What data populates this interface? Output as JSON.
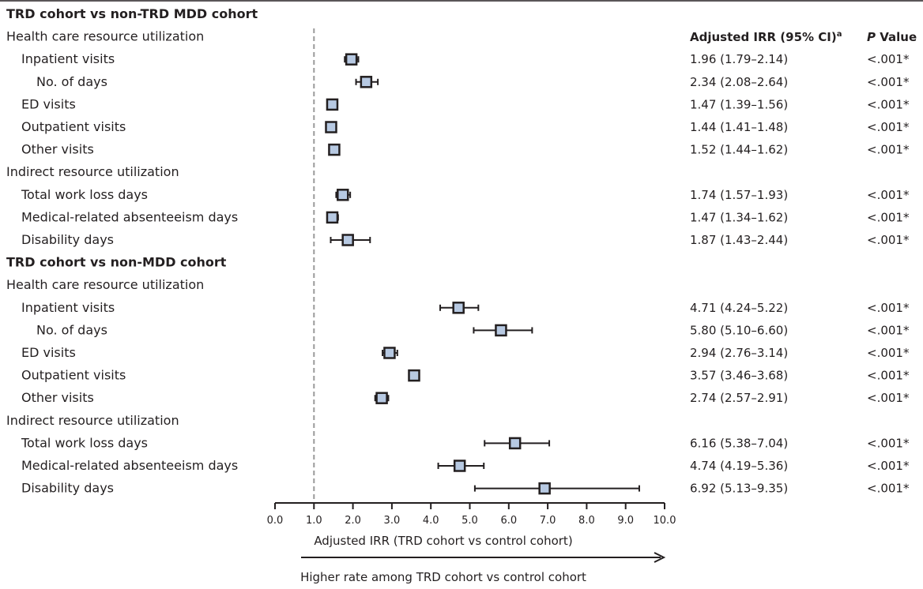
{
  "header": {
    "irr_label": "Adjusted IRR (95% CI)",
    "irr_superscript": "a",
    "p_label_italic": "P",
    "p_label_rest": " Value"
  },
  "sections": [
    {
      "label": "TRD cohort vs non-TRD MDD cohort",
      "groups": [
        {
          "label": "Health care resource utilization",
          "rows": [
            {
              "label": "Inpatient visits",
              "indent": 1,
              "irr": 1.96,
              "lo": 1.79,
              "hi": 2.14,
              "ci_text": "1.96 (1.79–2.14)",
              "p": "<.001*"
            },
            {
              "label": "No. of days",
              "indent": 2,
              "irr": 2.34,
              "lo": 2.08,
              "hi": 2.64,
              "ci_text": "2.34 (2.08–2.64)",
              "p": "<.001*"
            },
            {
              "label": "ED visits",
              "indent": 1,
              "irr": 1.47,
              "lo": 1.39,
              "hi": 1.56,
              "ci_text": "1.47 (1.39–1.56)",
              "p": "<.001*"
            },
            {
              "label": "Outpatient visits",
              "indent": 1,
              "irr": 1.44,
              "lo": 1.41,
              "hi": 1.48,
              "ci_text": "1.44 (1.41–1.48)",
              "p": "<.001*"
            },
            {
              "label": "Other visits",
              "indent": 1,
              "irr": 1.52,
              "lo": 1.44,
              "hi": 1.62,
              "ci_text": "1.52 (1.44–1.62)",
              "p": "<.001*"
            }
          ]
        },
        {
          "label": "Indirect resource utilization",
          "rows": [
            {
              "label": "Total work loss days",
              "indent": 1,
              "irr": 1.74,
              "lo": 1.57,
              "hi": 1.93,
              "ci_text": "1.74 (1.57–1.93)",
              "p": "<.001*"
            },
            {
              "label": "Medical-related absenteeism days",
              "indent": 1,
              "irr": 1.47,
              "lo": 1.34,
              "hi": 1.62,
              "ci_text": "1.47 (1.34–1.62)",
              "p": "<.001*"
            },
            {
              "label": "Disability days",
              "indent": 1,
              "irr": 1.87,
              "lo": 1.43,
              "hi": 2.44,
              "ci_text": "1.87 (1.43–2.44)",
              "p": "<.001*"
            }
          ]
        }
      ]
    },
    {
      "label": "TRD cohort vs non-MDD cohort",
      "groups": [
        {
          "label": "Health care resource utilization",
          "rows": [
            {
              "label": "Inpatient visits",
              "indent": 1,
              "irr": 4.71,
              "lo": 4.24,
              "hi": 5.22,
              "ci_text": "4.71 (4.24–5.22)",
              "p": "<.001*"
            },
            {
              "label": "No. of days",
              "indent": 2,
              "irr": 5.8,
              "lo": 5.1,
              "hi": 6.6,
              "ci_text": "5.80 (5.10–6.60)",
              "p": "<.001*"
            },
            {
              "label": "ED visits",
              "indent": 1,
              "irr": 2.94,
              "lo": 2.76,
              "hi": 3.14,
              "ci_text": "2.94 (2.76–3.14)",
              "p": "<.001*"
            },
            {
              "label": "Outpatient visits",
              "indent": 1,
              "irr": 3.57,
              "lo": 3.46,
              "hi": 3.68,
              "ci_text": "3.57 (3.46–3.68)",
              "p": "<.001*"
            },
            {
              "label": "Other visits",
              "indent": 1,
              "irr": 2.74,
              "lo": 2.57,
              "hi": 2.91,
              "ci_text": "2.74 (2.57–2.91)",
              "p": "<.001*"
            }
          ]
        },
        {
          "label": "Indirect resource utilization",
          "rows": [
            {
              "label": "Total work loss days",
              "indent": 1,
              "irr": 6.16,
              "lo": 5.38,
              "hi": 7.04,
              "ci_text": "6.16 (5.38–7.04)",
              "p": "<.001*"
            },
            {
              "label": "Medical-related absenteeism days",
              "indent": 1,
              "irr": 4.74,
              "lo": 4.19,
              "hi": 5.36,
              "ci_text": "4.74 (4.19–5.36)",
              "p": "<.001*"
            },
            {
              "label": "Disability days",
              "indent": 1,
              "irr": 6.92,
              "lo": 5.13,
              "hi": 9.35,
              "ci_text": "6.92 (5.13–9.35)",
              "p": "<.001*"
            }
          ]
        }
      ]
    }
  ],
  "chart_data": {
    "type": "forest",
    "xlabel": "Adjusted IRR (TRD cohort vs control cohort)",
    "arrow_label": "Higher rate among TRD cohort vs control cohort",
    "xlim": [
      0,
      10
    ],
    "x_ticks": [
      0,
      1,
      2,
      3,
      4,
      5,
      6,
      7,
      8,
      9,
      10
    ],
    "x_tick_labels": [
      "0.0",
      "1.0",
      "2.0",
      "3.0",
      "4.0",
      "5.0",
      "6.0",
      "7.0",
      "8.0",
      "9.0",
      "10.0"
    ],
    "reference_line": 1.0,
    "marker_color": "#b7c9e2",
    "reference_line_color": "#9a9a9a",
    "line_color": "#231f20"
  }
}
